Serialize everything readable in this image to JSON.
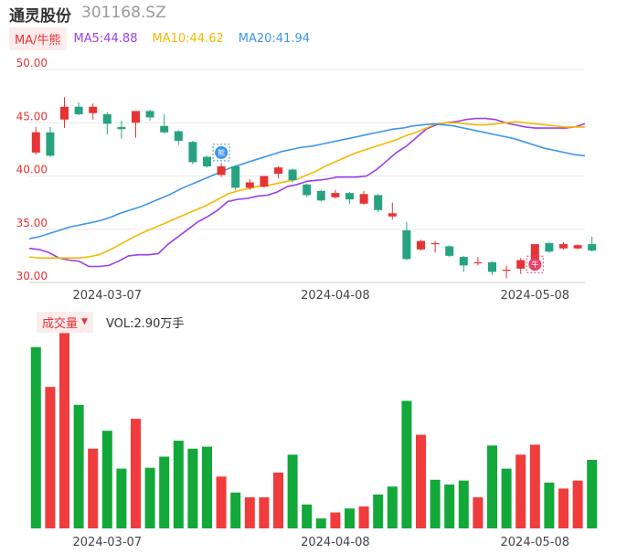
{
  "header": {
    "stock_name": "通灵股份",
    "stock_code": "301168.SZ"
  },
  "ma_legend": {
    "tab": "MA/牛熊",
    "items": [
      {
        "label": "MA5:44.88",
        "color": "#9b3ee8"
      },
      {
        "label": "MA10:44.62",
        "color": "#f5b800"
      },
      {
        "label": "MA20:41.94",
        "color": "#3d95e8"
      }
    ]
  },
  "volume_legend": {
    "tab": "成交量",
    "caret": "▼",
    "value": "VOL:2.90万手"
  },
  "markers": [
    {
      "icon": "bull-bear-marker-icon",
      "glyph": "熊",
      "color": "#3d95e8"
    },
    {
      "icon": "bull-bear-marker-icon",
      "glyph": "牛",
      "color": "#e8416b"
    }
  ],
  "colors": {
    "up": "#f03c3c",
    "down": "#12a83a",
    "up_candle": "#e63434",
    "down_candle": "#27a381",
    "grid": "#e8e8e8"
  },
  "chart_data": [
    {
      "type": "candlestick",
      "yticks": [
        "50.00",
        "45.00",
        "40.00",
        "35.00",
        "30.00"
      ],
      "ylim": [
        30,
        50
      ],
      "xticks": [
        {
          "label": "2024-03-07",
          "index": 5
        },
        {
          "label": "2024-04-08",
          "index": 21
        },
        {
          "label": "2024-05-08",
          "index": 35
        }
      ],
      "candles": [
        {
          "o": 42.2,
          "c": 44.1,
          "h": 44.6,
          "l": 42.0
        },
        {
          "o": 44.1,
          "c": 41.9,
          "h": 44.6,
          "l": 41.8
        },
        {
          "o": 45.3,
          "c": 46.5,
          "h": 47.4,
          "l": 44.5
        },
        {
          "o": 46.5,
          "c": 45.8,
          "h": 46.9,
          "l": 45.7
        },
        {
          "o": 45.9,
          "c": 46.5,
          "h": 46.8,
          "l": 45.3
        },
        {
          "o": 45.8,
          "c": 44.9,
          "h": 46.0,
          "l": 43.9
        },
        {
          "o": 44.6,
          "c": 44.4,
          "h": 45.2,
          "l": 43.5
        },
        {
          "o": 45.0,
          "c": 46.1,
          "h": 46.1,
          "l": 43.6
        },
        {
          "o": 46.1,
          "c": 45.5,
          "h": 46.2,
          "l": 45.2
        },
        {
          "o": 44.7,
          "c": 44.1,
          "h": 45.8,
          "l": 44.0
        },
        {
          "o": 44.2,
          "c": 43.3,
          "h": 44.3,
          "l": 42.9
        },
        {
          "o": 43.2,
          "c": 41.3,
          "h": 43.3,
          "l": 41.1
        },
        {
          "o": 41.8,
          "c": 40.9,
          "h": 41.9,
          "l": 40.8
        },
        {
          "o": 40.1,
          "c": 40.9,
          "h": 41.2,
          "l": 39.9
        },
        {
          "o": 40.9,
          "c": 38.9,
          "h": 41.0,
          "l": 38.7
        },
        {
          "o": 38.9,
          "c": 39.4,
          "h": 39.7,
          "l": 38.7
        },
        {
          "o": 39.0,
          "c": 40.0,
          "h": 40.0,
          "l": 38.9
        },
        {
          "o": 40.2,
          "c": 40.8,
          "h": 40.9,
          "l": 39.8
        },
        {
          "o": 40.6,
          "c": 39.6,
          "h": 40.7,
          "l": 39.4
        },
        {
          "o": 39.2,
          "c": 38.2,
          "h": 39.3,
          "l": 38.0
        },
        {
          "o": 38.6,
          "c": 37.7,
          "h": 38.7,
          "l": 37.6
        },
        {
          "o": 38.0,
          "c": 38.4,
          "h": 38.7,
          "l": 37.9
        },
        {
          "o": 38.4,
          "c": 37.8,
          "h": 38.5,
          "l": 37.4
        },
        {
          "o": 37.4,
          "c": 38.3,
          "h": 38.6,
          "l": 37.3
        },
        {
          "o": 38.2,
          "c": 36.8,
          "h": 38.3,
          "l": 36.6
        },
        {
          "o": 36.2,
          "c": 36.5,
          "h": 37.5,
          "l": 35.9
        },
        {
          "o": 34.9,
          "c": 32.2,
          "h": 35.7,
          "l": 32.1
        },
        {
          "o": 33.1,
          "c": 33.9,
          "h": 34.0,
          "l": 33.0
        },
        {
          "o": 33.6,
          "c": 33.7,
          "h": 33.9,
          "l": 32.8
        },
        {
          "o": 33.4,
          "c": 32.5,
          "h": 33.5,
          "l": 32.4
        },
        {
          "o": 32.4,
          "c": 31.6,
          "h": 32.5,
          "l": 31.0
        },
        {
          "o": 31.8,
          "c": 31.9,
          "h": 32.4,
          "l": 31.6
        },
        {
          "o": 31.9,
          "c": 31.0,
          "h": 32.0,
          "l": 30.7
        },
        {
          "o": 31.1,
          "c": 31.2,
          "h": 31.6,
          "l": 30.4
        },
        {
          "o": 31.3,
          "c": 32.1,
          "h": 32.3,
          "l": 30.8
        },
        {
          "o": 32.0,
          "c": 33.6,
          "h": 33.6,
          "l": 31.8
        },
        {
          "o": 33.7,
          "c": 32.9,
          "h": 33.8,
          "l": 32.8
        },
        {
          "o": 33.2,
          "c": 33.6,
          "h": 33.8,
          "l": 33.1
        },
        {
          "o": 33.2,
          "c": 33.5,
          "h": 33.6,
          "l": 33.1
        },
        {
          "o": 33.6,
          "c": 33.0,
          "h": 34.3,
          "l": 32.9
        }
      ],
      "series": [
        {
          "name": "MA5",
          "color": "#9b3ee8",
          "values": [
            33.2,
            33.1,
            32.8,
            32.3,
            32.1,
            32.0,
            31.5,
            31.5,
            31.6,
            32.0,
            32.5,
            32.6,
            32.6,
            32.7,
            33.6,
            34.3,
            35.0,
            35.7,
            36.2,
            36.8,
            37.6,
            37.8,
            37.9,
            38.1,
            38.2,
            38.5,
            39.0,
            39.2,
            39.5,
            39.6,
            39.7,
            39.9,
            39.9,
            39.9,
            40.0,
            40.6,
            41.4,
            42.2,
            42.8,
            43.6,
            44.4,
            44.8,
            45.0,
            45.1,
            45.3,
            45.4,
            45.4,
            45.3,
            45.0,
            44.8,
            44.6,
            44.5,
            44.5,
            44.5,
            44.5,
            44.6,
            44.9
          ]
        },
        {
          "name": "MA10",
          "color": "#f5b800",
          "values": [
            32.4,
            32.3,
            32.3,
            32.3,
            32.3,
            32.3,
            32.4,
            32.6,
            33.0,
            33.5,
            34.0,
            34.5,
            34.9,
            35.3,
            35.7,
            36.1,
            36.5,
            36.9,
            37.3,
            37.8,
            38.3,
            38.6,
            38.8,
            39.0,
            39.1,
            39.3,
            39.5,
            39.7,
            40.1,
            40.5,
            41.0,
            41.4,
            41.8,
            42.2,
            42.5,
            42.8,
            43.1,
            43.4,
            43.8,
            44.1,
            44.5,
            44.9,
            45.0,
            45.0,
            44.9,
            44.8,
            44.8,
            44.9,
            45.0,
            45.1,
            45.0,
            44.9,
            44.8,
            44.7,
            44.6,
            44.6,
            44.6
          ]
        },
        {
          "name": "MA20",
          "color": "#3d95e8",
          "values": [
            34.1,
            34.3,
            34.6,
            34.9,
            35.2,
            35.4,
            35.6,
            35.8,
            36.1,
            36.5,
            36.8,
            37.1,
            37.5,
            37.9,
            38.3,
            38.8,
            39.2,
            39.6,
            40.0,
            40.4,
            40.8,
            41.1,
            41.4,
            41.7,
            42.0,
            42.3,
            42.5,
            42.7,
            42.8,
            43.0,
            43.2,
            43.4,
            43.6,
            43.8,
            44.0,
            44.2,
            44.4,
            44.5,
            44.7,
            44.8,
            44.9,
            44.8,
            44.7,
            44.5,
            44.3,
            44.1,
            43.9,
            43.7,
            43.5,
            43.2,
            42.9,
            42.6,
            42.4,
            42.2,
            42.0,
            41.9
          ]
        }
      ]
    },
    {
      "type": "bar",
      "xticks": [
        {
          "label": "2024-03-07",
          "index": 5
        },
        {
          "label": "2024-04-08",
          "index": 21
        },
        {
          "label": "2024-05-08",
          "index": 35
        }
      ],
      "values": [
        4.55,
        3.55,
        4.9,
        3.1,
        2.0,
        2.45,
        1.5,
        2.75,
        1.52,
        1.8,
        2.2,
        2.0,
        2.05,
        1.3,
        0.9,
        0.78,
        0.78,
        1.4,
        1.85,
        0.6,
        0.25,
        0.4,
        0.5,
        0.55,
        0.85,
        1.05,
        3.2,
        2.35,
        1.22,
        1.1,
        1.2,
        0.78,
        2.08,
        1.5,
        1.85,
        2.1,
        1.15,
        1.0,
        1.2,
        1.72
      ],
      "directions": [
        "down",
        "up",
        "up",
        "down",
        "up",
        "down",
        "down",
        "up",
        "down",
        "down",
        "down",
        "down",
        "down",
        "up",
        "down",
        "up",
        "up",
        "up",
        "down",
        "down",
        "down",
        "up",
        "down",
        "up",
        "down",
        "down",
        "down",
        "up",
        "down",
        "down",
        "down",
        "up",
        "down",
        "down",
        "up",
        "up",
        "down",
        "up",
        "up",
        "down"
      ]
    }
  ]
}
